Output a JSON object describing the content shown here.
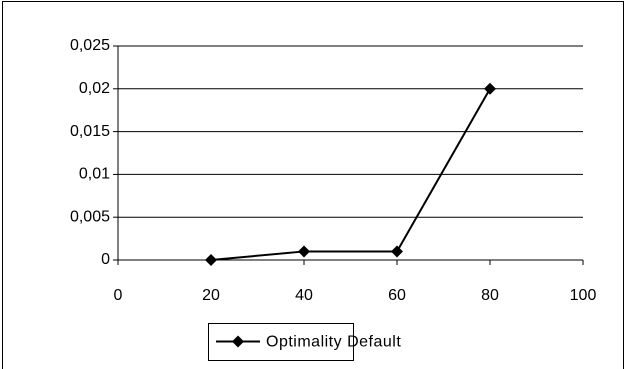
{
  "chart_data": {
    "type": "line",
    "x": [
      20,
      40,
      60,
      80
    ],
    "series": [
      {
        "name": "Optimality Default",
        "color": "#000000",
        "values": [
          0,
          0.001,
          0.001,
          0.02
        ]
      }
    ],
    "xlim": [
      0,
      100
    ],
    "xticks": [
      0,
      20,
      40,
      60,
      80,
      100
    ],
    "ylim": [
      0,
      0.025
    ],
    "yticks": [
      0,
      {
        "value": 0.005,
        "label": "0,005"
      },
      {
        "value": 0.01,
        "label": "0,01"
      },
      {
        "value": 0.015,
        "label": "0,015"
      },
      {
        "value": 0.02,
        "label": "0,02"
      },
      {
        "value": 0.025,
        "label": "0,025"
      }
    ],
    "grid": true,
    "legend": "bottom"
  }
}
